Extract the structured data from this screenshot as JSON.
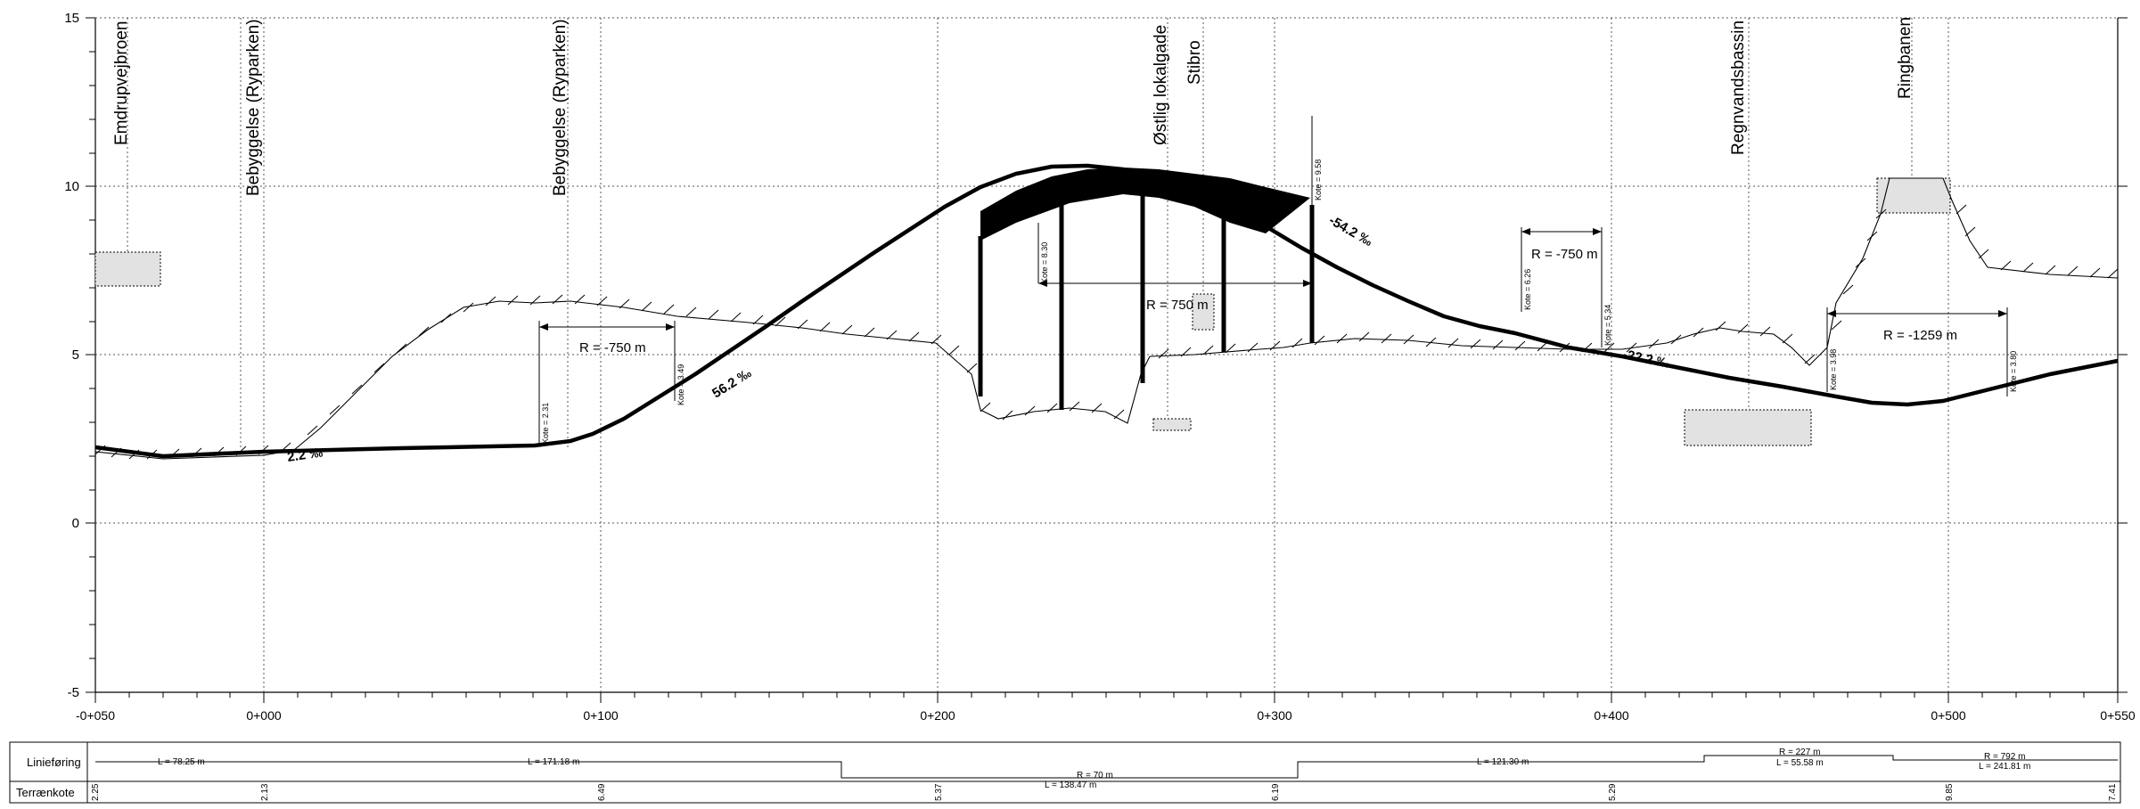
{
  "y_axis": {
    "ticks": [
      "15",
      "10",
      "5",
      "0",
      "-5"
    ]
  },
  "x_axis": {
    "ticks": [
      "-0+050",
      "0+000",
      "0+100",
      "0+200",
      "0+300",
      "0+400",
      "0+500",
      "0+550"
    ]
  },
  "objects": [
    {
      "name": "Emdrupvejbroen"
    },
    {
      "name": "Bebyggelse (Ryparken)"
    },
    {
      "name": "Bebyggelse (Ryparken)"
    },
    {
      "name": "Østlig lokalgade"
    },
    {
      "name": "Stibro"
    },
    {
      "name": "Regnvandsbassin"
    },
    {
      "name": "Ringbanen"
    }
  ],
  "kote_labels": [
    "Kote = 2.31",
    "Kote = 3.49",
    "Kote = 8.30",
    "Kote = 9.58",
    "Kote = 6.26",
    "Kote = 5.34",
    "Kote = 3.98",
    "Kote = 3.80"
  ],
  "radius_labels": [
    "R = -750 m",
    "R = 750 m",
    "R = -750 m",
    "R = -1259 m"
  ],
  "grade_labels": [
    "2.2 ‰",
    "56.2 ‰",
    "-54.2 ‰",
    "-22.2 ‰"
  ],
  "table": {
    "row1_label": "Linieføring",
    "row2_label": "Terrænkote",
    "linie": [
      "L = 78.25 m",
      "L = 171.18 m",
      "R = 70 m",
      "L = 138.47 m",
      "L = 121.30 m",
      "R = 227 m",
      "L = 55.58 m",
      "R = 792 m",
      "L = 241.81 m"
    ],
    "terrain": [
      "2.25",
      "2.13",
      "6.49",
      "5.37",
      "6.19",
      "5.29",
      "9.85",
      "7.41"
    ]
  }
}
